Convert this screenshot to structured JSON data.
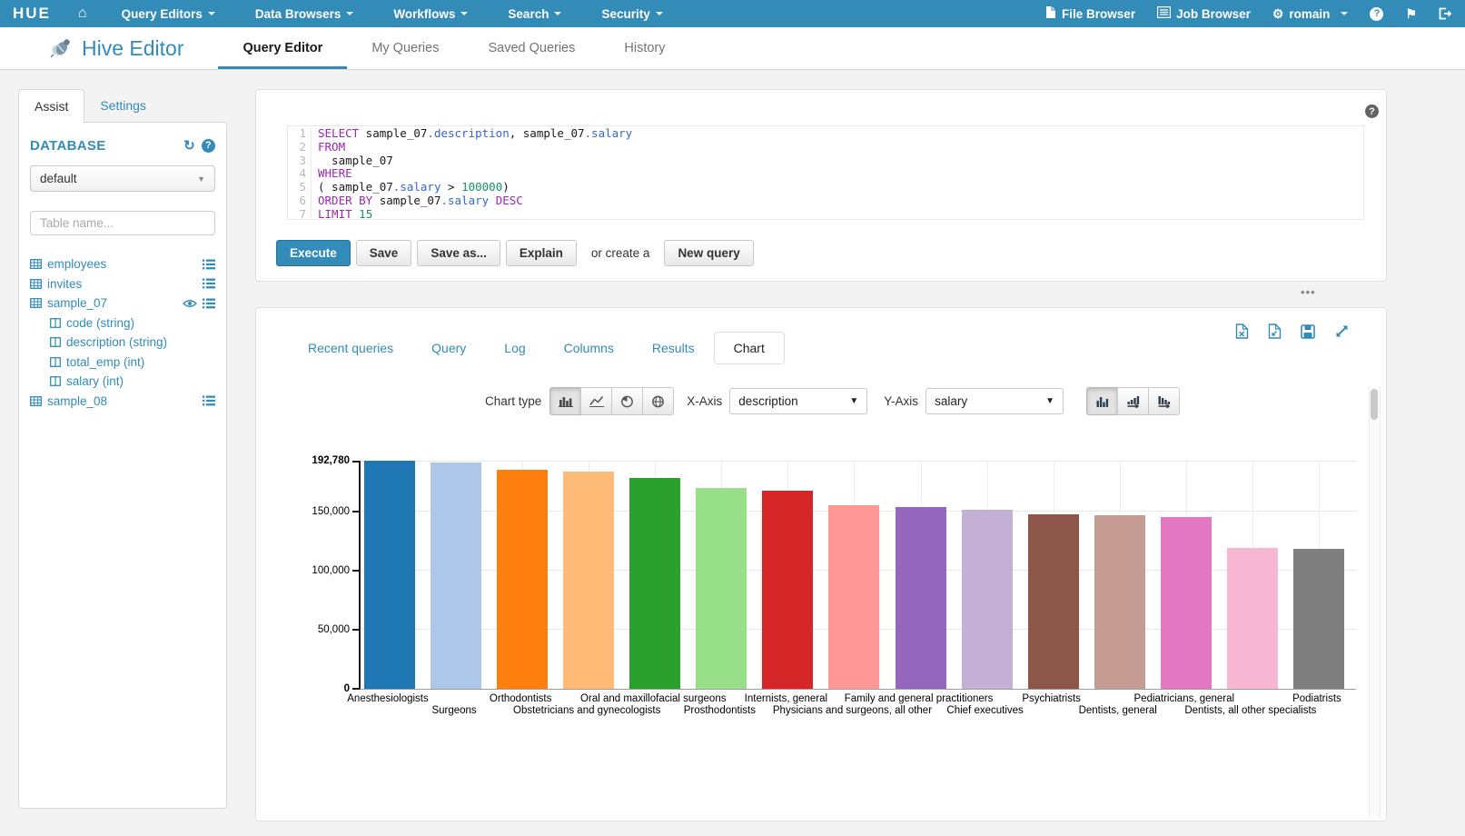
{
  "colors": {
    "accent": "#338bb8",
    "navbar_bg": "#338bb8",
    "panel_bg": "#ffffff",
    "page_bg": "#f3f3f3",
    "keyword": "#9c27b0",
    "identifier": "#3366cc",
    "number": "#159360"
  },
  "icons": {
    "hue_logo": "HUE",
    "home": "⌂",
    "dropdown_caret": "▾",
    "refresh": "↻",
    "help": "?",
    "flag": "⚑",
    "file": "file-icon",
    "job_list": "list-icon",
    "gears": "⚙",
    "sign_out": "sign-out-icon",
    "table": "table-grid-icon",
    "column": "column-icon",
    "eye": "eye-icon",
    "row_menu": "list-icon",
    "download_excel": "file-excel-icon",
    "download_doc": "file-doc-icon",
    "save": "floppy-icon",
    "expand": "expand-arrows-icon",
    "drag_handle": "•••"
  },
  "navbar": {
    "logo": "HUE",
    "menus": [
      "Query Editors",
      "Data Browsers",
      "Workflows",
      "Search",
      "Security"
    ],
    "right": {
      "file_browser": "File Browser",
      "job_browser": "Job Browser",
      "user": "romain"
    }
  },
  "subnav": {
    "app_title": "Hive Editor",
    "tabs": [
      {
        "label": "Query Editor",
        "active": true
      },
      {
        "label": "My Queries",
        "active": false
      },
      {
        "label": "Saved Queries",
        "active": false
      },
      {
        "label": "History",
        "active": false
      }
    ]
  },
  "sidebar": {
    "tabs": [
      {
        "label": "Assist",
        "active": true
      },
      {
        "label": "Settings",
        "active": false
      }
    ],
    "database_label": "DATABASE",
    "database_value": "default",
    "table_filter_placeholder": "Table name...",
    "tables": [
      {
        "name": "employees",
        "eye": false,
        "columns": []
      },
      {
        "name": "invites",
        "eye": false,
        "columns": []
      },
      {
        "name": "sample_07",
        "eye": true,
        "columns": [
          "code (string)",
          "description (string)",
          "total_emp (int)",
          "salary (int)"
        ]
      },
      {
        "name": "sample_08",
        "eye": false,
        "columns": []
      }
    ]
  },
  "editor": {
    "lines": [
      {
        "n": "1",
        "segs": [
          {
            "c": "kw",
            "t": "SELECT"
          },
          {
            "c": "",
            "t": " sample_07"
          },
          {
            "c": "id",
            "t": ".description"
          },
          {
            "c": "",
            "t": ", sample_07"
          },
          {
            "c": "id",
            "t": ".salary"
          }
        ]
      },
      {
        "n": "2",
        "segs": [
          {
            "c": "kw",
            "t": "FROM"
          }
        ]
      },
      {
        "n": "3",
        "segs": [
          {
            "c": "",
            "t": "  sample_07"
          }
        ]
      },
      {
        "n": "4",
        "segs": [
          {
            "c": "kw",
            "t": "WHERE"
          }
        ]
      },
      {
        "n": "5",
        "segs": [
          {
            "c": "",
            "t": "( sample_07"
          },
          {
            "c": "id",
            "t": ".salary"
          },
          {
            "c": "",
            "t": " > "
          },
          {
            "c": "num",
            "t": "100000"
          },
          {
            "c": "",
            "t": ")"
          }
        ]
      },
      {
        "n": "6",
        "segs": [
          {
            "c": "kw",
            "t": "ORDER BY"
          },
          {
            "c": "",
            "t": " sample_07"
          },
          {
            "c": "id",
            "t": ".salary"
          },
          {
            "c": "",
            "t": " "
          },
          {
            "c": "kw",
            "t": "DESC"
          }
        ]
      },
      {
        "n": "7",
        "segs": [
          {
            "c": "kw",
            "t": "LIMIT"
          },
          {
            "c": "",
            "t": " "
          },
          {
            "c": "num",
            "t": "15"
          }
        ]
      }
    ],
    "buttons": {
      "execute": "Execute",
      "save": "Save",
      "save_as": "Save as...",
      "explain": "Explain",
      "or_create": "or create a",
      "new_query": "New query"
    }
  },
  "results": {
    "tabs": [
      {
        "label": "Recent queries",
        "active": false
      },
      {
        "label": "Query",
        "active": false
      },
      {
        "label": "Log",
        "active": false
      },
      {
        "label": "Columns",
        "active": false
      },
      {
        "label": "Results",
        "active": false
      },
      {
        "label": "Chart",
        "active": true
      }
    ],
    "controls": {
      "chart_type_label": "Chart type",
      "x_axis_label": "X-Axis",
      "x_axis_value": "description",
      "y_axis_label": "Y-Axis",
      "y_axis_value": "salary"
    }
  },
  "chart_data": {
    "type": "bar",
    "title": "",
    "xlabel": "description",
    "ylabel": "salary",
    "grid": true,
    "legend": false,
    "ylim": [
      0,
      192780
    ],
    "categories": [
      "Anesthesiologists",
      "Surgeons",
      "Orthodontists",
      "Obstetricians and gynecologists",
      "Oral and maxillofacial surgeons",
      "Prosthodontists",
      "Internists, general",
      "Physicians and surgeons, all other",
      "Family and general practitioners",
      "Chief executives",
      "Psychiatrists",
      "Dentists, general",
      "Pediatricians, general",
      "Dentists, all other specialists",
      "Podiatrists"
    ],
    "values": [
      192780,
      191410,
      185340,
      183600,
      178440,
      169810,
      167270,
      155150,
      153640,
      151370,
      147620,
      147010,
      145210,
      119310,
      118500
    ],
    "colors": [
      "#1f77b4",
      "#aec7e8",
      "#ff7f0e",
      "#ffbb78",
      "#2ca02c",
      "#98df8a",
      "#d62728",
      "#ff9896",
      "#9467bd",
      "#c5b0d5",
      "#8c564b",
      "#c49c94",
      "#e377c2",
      "#f7b6d2",
      "#7f7f7f"
    ],
    "y_ticks": [
      {
        "label": "192,780",
        "value": 192780,
        "bold": true
      },
      {
        "label": "150,000",
        "value": 150000,
        "bold": false
      },
      {
        "label": "100,000",
        "value": 100000,
        "bold": false
      },
      {
        "label": "50,000",
        "value": 50000,
        "bold": false
      },
      {
        "label": "0",
        "value": 0,
        "bold": true
      }
    ]
  }
}
